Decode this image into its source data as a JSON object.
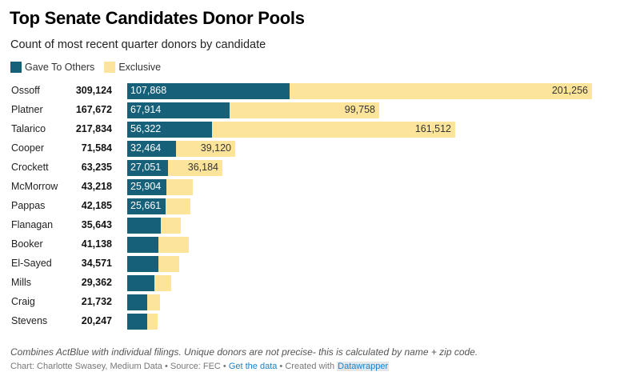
{
  "header": {
    "title": "Top Senate Candidates Donor Pools",
    "subtitle": "Count of most recent quarter donors by candidate"
  },
  "legend": [
    {
      "label": "Gave To Others",
      "color": "#17607a"
    },
    {
      "label": "Exclusive",
      "color": "#fce59b"
    }
  ],
  "chart_data": {
    "type": "bar",
    "orientation": "horizontal",
    "stacked": true,
    "title": "Top Senate Candidates Donor Pools",
    "subtitle": "Count of most recent quarter donors by candidate",
    "categories": [
      "Ossoff",
      "Platner",
      "Talarico",
      "Cooper",
      "Crockett",
      "McMorrow",
      "Pappas",
      "Flanagan",
      "Booker",
      "El-Sayed",
      "Mills",
      "Craig",
      "Stevens"
    ],
    "totals": [
      309124,
      167672,
      217834,
      71584,
      63235,
      43218,
      42185,
      35643,
      41138,
      34571,
      29362,
      21732,
      20247
    ],
    "series": [
      {
        "name": "Gave To Others",
        "color": "#17607a",
        "values": [
          107868,
          67914,
          56322,
          32464,
          27051,
          25904,
          25661,
          22350,
          20750,
          20750,
          18100,
          13300,
          13300
        ],
        "labeled": [
          true,
          true,
          true,
          true,
          true,
          true,
          true,
          false,
          false,
          false,
          false,
          false,
          false
        ]
      },
      {
        "name": "Exclusive",
        "color": "#fce59b",
        "values": [
          201256,
          99758,
          161512,
          39120,
          36184,
          17314,
          16524,
          13293,
          20388,
          13821,
          11262,
          8432,
          6947
        ],
        "labeled": [
          true,
          true,
          true,
          true,
          true,
          false,
          false,
          false,
          false,
          false,
          false,
          false,
          false
        ]
      }
    ],
    "xlim": [
      0,
      309124
    ],
    "grid": false,
    "legend_position": "top-left",
    "notes": "Unlabeled segment values estimated from bar lengths"
  },
  "footer": {
    "notes": "Combines ActBlue with individual filings. Unique donors are not precise- this is calculated by name + zip code.",
    "byline_prefix": "Chart: Charlotte Swasey, Medium Data • Source: FEC • ",
    "get_data_link": "Get the data",
    "created_with": " • Created with ",
    "datawrapper_link": "Datawrapper"
  }
}
